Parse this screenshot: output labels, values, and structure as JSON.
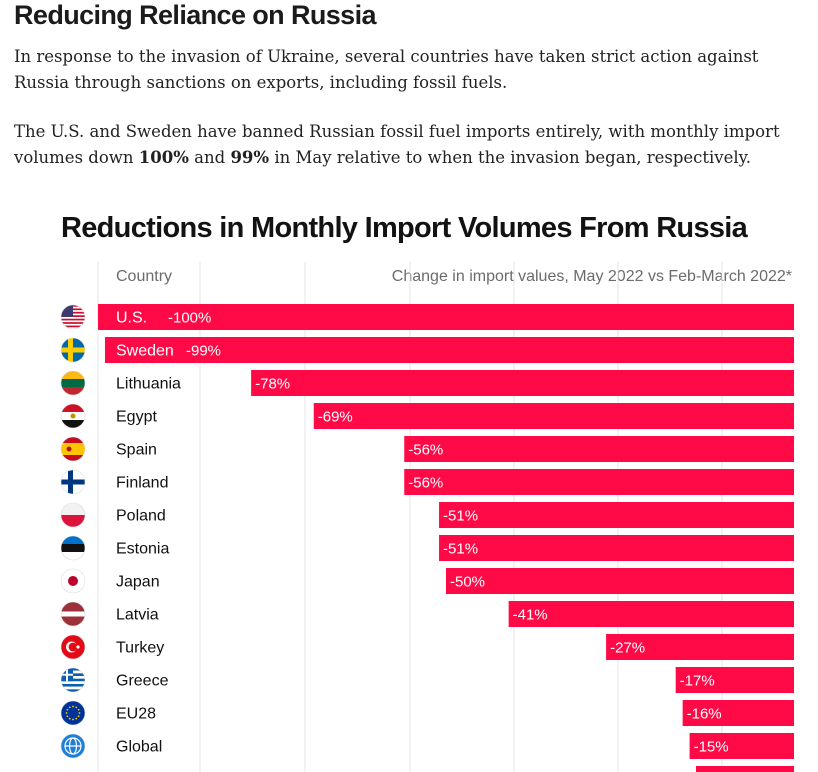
{
  "article": {
    "title": "Reducing Reliance on Russia",
    "para1": "In response to the invasion of Ukraine, several countries have taken strict action against Russia through sanctions on exports, including fossil fuels.",
    "para2_before": "The U.S. and Sweden have banned Russian fossil fuel imports entirely, with monthly import volumes down ",
    "para2_bold1": "100%",
    "para2_mid": " and ",
    "para2_bold2": "99%",
    "para2_after": " in May relative to when the invasion began, respectively."
  },
  "colors": {
    "bar": "#ff0a47",
    "text": "#111111",
    "muted": "#6b6b6b"
  },
  "chart_data": {
    "type": "bar",
    "orientation": "horizontal",
    "title": "Reductions in Monthly Import Volumes From Russia",
    "category_header": "Country",
    "value_header": "Change in import values, May 2022 vs Feb-March 2022*",
    "xlim": [
      -100,
      0
    ],
    "categories": [
      "U.S.",
      "Sweden",
      "Lithuania",
      "Egypt",
      "Spain",
      "Finland",
      "Poland",
      "Estonia",
      "Japan",
      "Latvia",
      "Turkey",
      "Greece",
      "EU28",
      "Global"
    ],
    "values": [
      -100,
      -99,
      -78,
      -69,
      -56,
      -56,
      -51,
      -51,
      -50,
      -41,
      -27,
      -17,
      -16,
      -15
    ],
    "value_labels": [
      "-100%",
      "-99%",
      "-78%",
      "-69%",
      "-56%",
      "-56%",
      "-51%",
      "-51%",
      "-50%",
      "-41%",
      "-27%",
      "-17%",
      "-16%",
      "-15%"
    ],
    "flags": [
      "us-flag-icon",
      "sweden-flag-icon",
      "lithuania-flag-icon",
      "egypt-flag-icon",
      "spain-flag-icon",
      "finland-flag-icon",
      "poland-flag-icon",
      "estonia-flag-icon",
      "japan-flag-icon",
      "latvia-flag-icon",
      "turkey-flag-icon",
      "greece-flag-icon",
      "eu-flag-icon",
      "globe-icon"
    ]
  }
}
